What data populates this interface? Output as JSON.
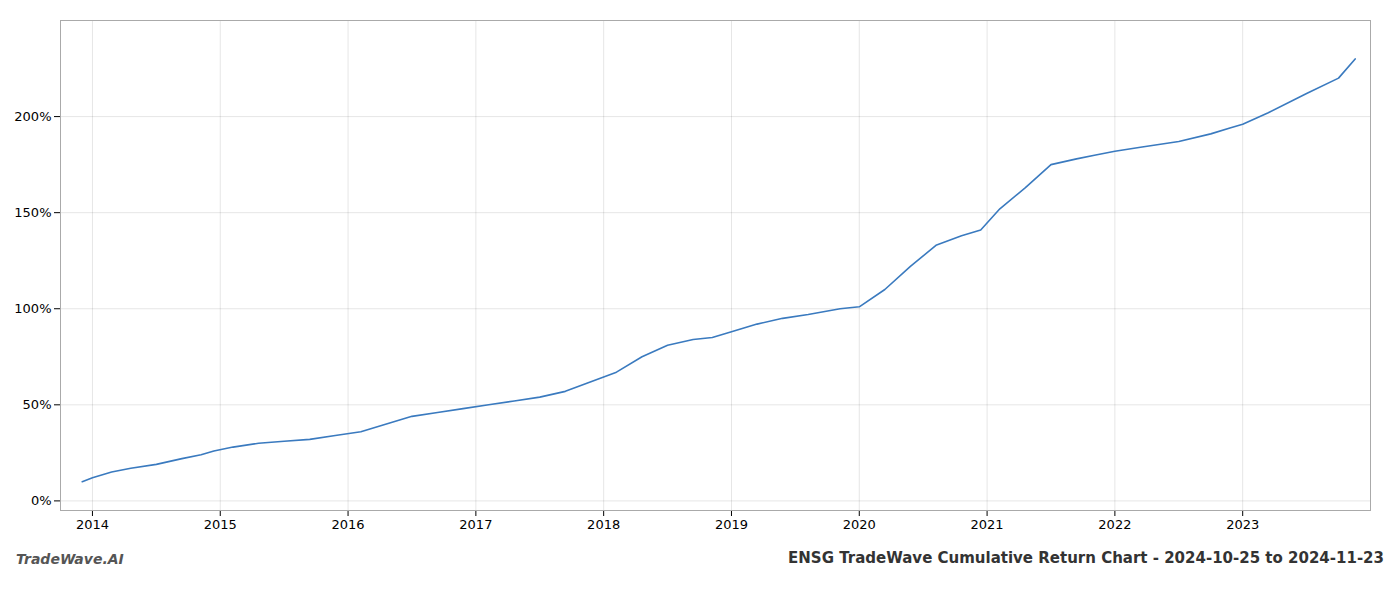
{
  "chart_data": {
    "type": "line",
    "title": "ENSG TradeWave Cumulative Return Chart - 2024-10-25 to 2024-11-23",
    "annotations": [
      "TradeWave.AI"
    ],
    "color": "#3a7abf",
    "grid": true,
    "x": [
      2013.92,
      2014.0,
      2014.15,
      2014.3,
      2014.5,
      2014.7,
      2014.85,
      2014.95,
      2015.1,
      2015.3,
      2015.5,
      2015.7,
      2015.9,
      2016.1,
      2016.3,
      2016.5,
      2016.7,
      2016.9,
      2017.1,
      2017.3,
      2017.5,
      2017.7,
      2017.9,
      2018.1,
      2018.3,
      2018.5,
      2018.7,
      2018.85,
      2019.0,
      2019.2,
      2019.4,
      2019.6,
      2019.85,
      2020.0,
      2020.2,
      2020.4,
      2020.6,
      2020.8,
      2020.95,
      2021.1,
      2021.3,
      2021.5,
      2021.7,
      2021.85,
      2022.0,
      2022.2,
      2022.5,
      2022.75,
      2022.9,
      2023.0,
      2023.2,
      2023.5,
      2023.75,
      2023.88
    ],
    "values": [
      10,
      12,
      15,
      17,
      19,
      22,
      24,
      26,
      28,
      30,
      31,
      32,
      34,
      36,
      40,
      44,
      46,
      48,
      50,
      52,
      54,
      57,
      62,
      67,
      75,
      81,
      84,
      85,
      88,
      92,
      95,
      97,
      100,
      101,
      110,
      122,
      133,
      138,
      141,
      152,
      163,
      175,
      178,
      180,
      182,
      184,
      187,
      191,
      194,
      196,
      202,
      212,
      220,
      230
    ],
    "xlim": [
      2013.75,
      2024.0
    ],
    "xticks": [
      2014,
      2015,
      2016,
      2017,
      2018,
      2019,
      2020,
      2021,
      2022,
      2023
    ],
    "ylim": [
      -5,
      250
    ],
    "yticks": [
      {
        "value": 0,
        "label": "0%"
      },
      {
        "value": 50,
        "label": "50%"
      },
      {
        "value": 100,
        "label": "100%"
      },
      {
        "value": 150,
        "label": "150%"
      },
      {
        "value": 200,
        "label": "200%"
      }
    ]
  }
}
